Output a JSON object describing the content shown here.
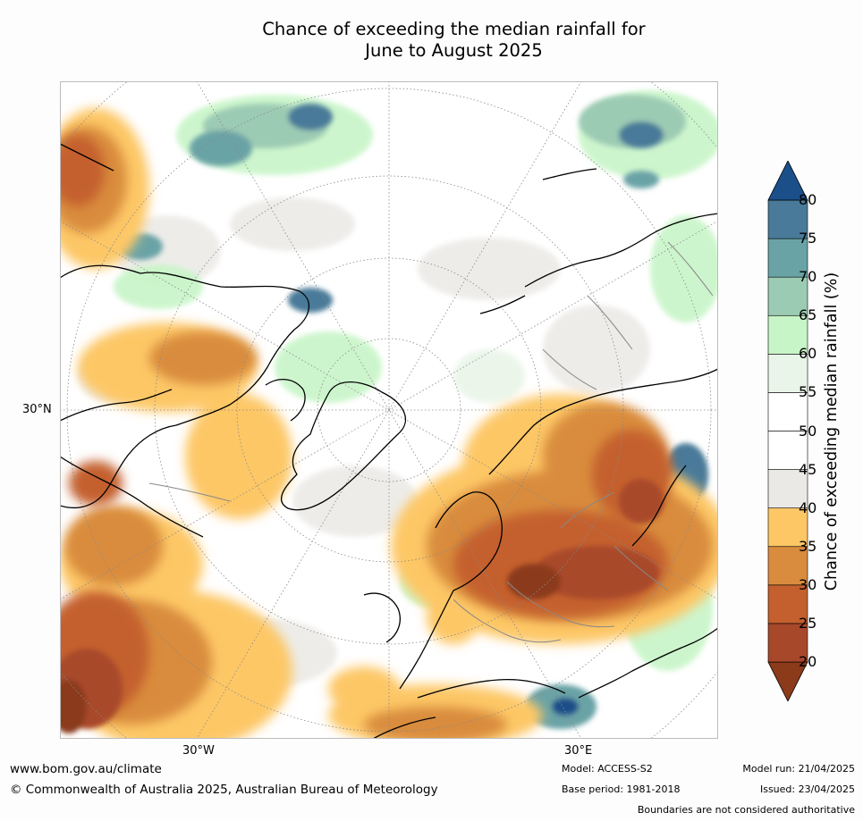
{
  "title_line1": "Chance of exceeding the median rainfall for",
  "title_line2": "June to August 2025",
  "map": {
    "projection": "north-polar-stereographic",
    "lon_labels": [
      "30°W",
      "30°E"
    ],
    "lat_labels": [
      "30°N"
    ]
  },
  "colorbar": {
    "label": "Chance of exceeding median rainfall (%)",
    "ticks": [
      "80",
      "75",
      "70",
      "65",
      "60",
      "55",
      "50",
      "45",
      "40",
      "35",
      "30",
      "25",
      "20"
    ],
    "colors": [
      "#8b3a1a",
      "#a8482a",
      "#c4602e",
      "#d98c3e",
      "#fdc766",
      "#ebe9e6",
      "#ffffff",
      "#ffffff",
      "#e9f5e8",
      "#c8f5c8",
      "#9ccbb4",
      "#6aa3a6",
      "#4a7a99",
      "#1a4f8a"
    ]
  },
  "footer": {
    "url": "www.bom.gov.au/climate",
    "copyright": "© Commonwealth of Australia 2025, Australian Bureau of Meteorology",
    "model": "Model: ACCESS-S2",
    "base_period": "Base period: 1981-2018",
    "model_run": "Model run: 21/04/2025",
    "issued": "Issued: 23/04/2025",
    "disclaimer": "Boundaries are not considered authoritative"
  }
}
